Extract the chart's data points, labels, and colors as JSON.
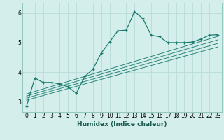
{
  "xlabel": "Humidex (Indice chaleur)",
  "bg_color": "#d4eeeb",
  "line_color": "#1a7a6e",
  "grid_color": "#b8dbd7",
  "xlim": [
    -0.5,
    23.5
  ],
  "ylim": [
    2.65,
    6.35
  ],
  "yticks": [
    3,
    4,
    5,
    6
  ],
  "xticks": [
    0,
    1,
    2,
    3,
    4,
    5,
    6,
    7,
    8,
    9,
    10,
    11,
    12,
    13,
    14,
    15,
    16,
    17,
    18,
    19,
    20,
    21,
    22,
    23
  ],
  "main_line_x": [
    0,
    1,
    2,
    3,
    4,
    5,
    6,
    7,
    8,
    9,
    10,
    11,
    12,
    13,
    14,
    15,
    16,
    17,
    18,
    19,
    20,
    21,
    22,
    23
  ],
  "main_line_y": [
    2.85,
    3.8,
    3.65,
    3.65,
    3.6,
    3.5,
    3.28,
    3.85,
    4.1,
    4.65,
    5.02,
    5.4,
    5.42,
    6.05,
    5.82,
    5.25,
    5.2,
    5.0,
    5.0,
    5.0,
    5.02,
    5.12,
    5.25,
    5.27
  ],
  "reg_lines": [
    {
      "x": [
        0,
        23
      ],
      "y": [
        3.05,
        4.85
      ]
    },
    {
      "x": [
        0,
        23
      ],
      "y": [
        3.12,
        4.97
      ]
    },
    {
      "x": [
        0,
        23
      ],
      "y": [
        3.19,
        5.09
      ]
    },
    {
      "x": [
        0,
        23
      ],
      "y": [
        3.26,
        5.21
      ]
    }
  ]
}
